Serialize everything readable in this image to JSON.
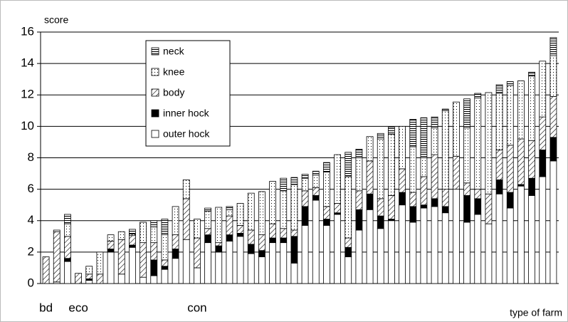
{
  "chart_data": {
    "type": "stacked_bar",
    "y_axis_label": "score",
    "x_axis_label": "type of farm",
    "categories": [
      "bd",
      null,
      null,
      "eco",
      null,
      null,
      null,
      null,
      null,
      null,
      null,
      null,
      null,
      null,
      "con",
      null,
      null,
      null,
      null,
      null,
      null,
      null,
      null,
      null,
      null,
      null,
      null,
      null,
      null,
      null,
      null,
      null,
      null,
      null,
      null,
      null,
      null,
      null,
      null,
      null,
      null,
      null,
      null,
      null,
      null,
      null,
      null,
      null
    ],
    "ylim": [
      0,
      16
    ],
    "yticks": [
      0,
      2,
      4,
      6,
      8,
      10,
      12,
      14,
      16
    ],
    "grid": true,
    "series": [
      {
        "name": "outer hock",
        "color": "#ffffff",
        "values": [
          0,
          0.1,
          1.4,
          0,
          0.2,
          0,
          2.0,
          0.6,
          2.3,
          0.4,
          0.5,
          0.9,
          1.6,
          2.8,
          1.0,
          2.6,
          2.0,
          2.7,
          3.0,
          1.9,
          1.7,
          2.6,
          2.6,
          1.3,
          3.7,
          5.3,
          3.7,
          4.4,
          1.7,
          3.4,
          4.7,
          3.5,
          4.0,
          5.0,
          3.9,
          4.8,
          4.9,
          4.5,
          6.0,
          3.9,
          4.4,
          3.8,
          5.7,
          4.8,
          6.2,
          5.6,
          6.8,
          7.8
        ]
      },
      {
        "name": "inner hock",
        "color": "#000000",
        "values": [
          0,
          0,
          0.2,
          0,
          0.1,
          0,
          0.2,
          0,
          0.15,
          0,
          1.0,
          0.2,
          0.6,
          0,
          0,
          0.5,
          0.4,
          0.4,
          0.2,
          0.6,
          0.4,
          0.3,
          0.3,
          1.7,
          1.2,
          0.3,
          0.4,
          0.1,
          0.6,
          1.3,
          1.0,
          0.8,
          0.1,
          0.8,
          1.0,
          0.2,
          0.5,
          0.4,
          0,
          1.7,
          1.0,
          0,
          0.9,
          1.0,
          0.1,
          1.1,
          1.7,
          1.5
        ]
      },
      {
        "name": "body",
        "color": "#000000",
        "values": [
          1.7,
          3.2,
          1.4,
          0.65,
          0.3,
          0.6,
          0.5,
          2.2,
          0.6,
          2.2,
          1.1,
          0.4,
          0.9,
          2.6,
          1.9,
          0.4,
          0.2,
          1.2,
          0.5,
          0.9,
          1.0,
          0.9,
          0.6,
          0.4,
          1.0,
          0.5,
          0.8,
          0.6,
          0.6,
          1.2,
          2.1,
          1.1,
          1.5,
          1.5,
          0.9,
          1.8,
          2.8,
          1.1,
          2.1,
          0.8,
          0.6,
          1.9,
          1.9,
          3.0,
          2.9,
          2.4,
          2.1,
          2.6
        ]
      },
      {
        "name": "knee",
        "color": "#000000",
        "values": [
          0,
          0.1,
          0.8,
          0,
          0.5,
          1.4,
          0.4,
          0.5,
          0.1,
          1.3,
          1.0,
          1.6,
          1.8,
          1.2,
          1.2,
          1.1,
          2.25,
          0.4,
          1.4,
          2.35,
          2.75,
          2.7,
          2.4,
          2.9,
          0.8,
          0.8,
          2.2,
          3.1,
          3.9,
          2.1,
          1.55,
          3.8,
          3.9,
          2.7,
          2.9,
          1.2,
          1.7,
          5.0,
          3.45,
          3.5,
          5.8,
          6.45,
          3.6,
          3.8,
          3.7,
          4.1,
          3.55,
          2.6
        ]
      },
      {
        "name": "neck",
        "color": "#000000",
        "values": [
          0,
          0,
          0.6,
          0,
          0,
          0,
          0,
          0,
          0.3,
          0,
          0.4,
          1.0,
          0,
          0,
          0,
          0.2,
          0,
          0.2,
          0,
          0,
          0,
          0,
          0.8,
          0.45,
          0.25,
          0.25,
          0.6,
          0,
          1.55,
          0.55,
          0,
          0.35,
          0.45,
          0,
          1.75,
          2.55,
          0.7,
          0.1,
          0,
          1.85,
          0.3,
          0,
          0.55,
          0.25,
          0,
          0.25,
          0,
          1.15
        ]
      }
    ]
  }
}
